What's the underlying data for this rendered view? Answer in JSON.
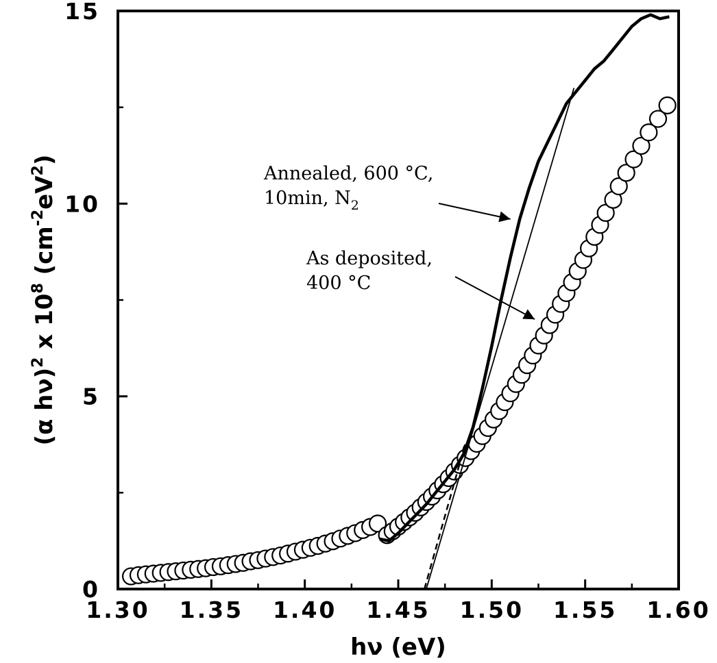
{
  "chart_data": {
    "type": "scatter",
    "title": "",
    "xlabel": "hν (eV)",
    "ylabel_parts": [
      "(α hν)",
      "2",
      " x 10",
      "8",
      " (cm",
      "-2",
      "eV",
      "2",
      ")"
    ],
    "xlim": [
      1.3,
      1.6
    ],
    "ylim": [
      0,
      15
    ],
    "xticks": [
      1.3,
      1.35,
      1.4,
      1.45,
      1.5,
      1.55,
      1.6
    ],
    "xtick_labels": [
      "1.30",
      "1.35",
      "1.40",
      "1.45",
      "1.50",
      "1.55",
      "1.60"
    ],
    "yticks": [
      0,
      5,
      10,
      15
    ],
    "ytick_labels": [
      "0",
      "5",
      "10",
      "15"
    ],
    "grid": false,
    "series": [
      {
        "marker": "open-circle",
        "x": [
          1.307,
          1.311,
          1.315,
          1.319,
          1.323,
          1.327,
          1.331,
          1.335,
          1.339,
          1.343,
          1.347,
          1.351,
          1.355,
          1.359,
          1.363,
          1.367,
          1.371,
          1.375,
          1.379,
          1.383,
          1.387,
          1.391,
          1.395,
          1.399,
          1.403,
          1.407,
          1.411,
          1.415,
          1.419,
          1.423,
          1.427,
          1.431,
          1.435,
          1.439,
          1.444,
          1.447,
          1.45,
          1.453,
          1.456,
          1.459,
          1.462,
          1.465,
          1.468,
          1.471,
          1.474,
          1.477,
          1.48,
          1.483,
          1.486,
          1.489,
          1.492,
          1.495,
          1.498,
          1.501,
          1.504,
          1.507,
          1.51,
          1.513,
          1.516,
          1.519,
          1.522,
          1.525,
          1.528,
          1.531,
          1.534,
          1.537,
          1.54,
          1.543,
          1.546,
          1.549,
          1.552,
          1.555,
          1.558,
          1.561,
          1.565,
          1.568,
          1.572,
          1.576,
          1.58,
          1.584,
          1.589,
          1.594
        ],
        "y": [
          0.33,
          0.36,
          0.38,
          0.4,
          0.42,
          0.44,
          0.46,
          0.48,
          0.5,
          0.52,
          0.54,
          0.57,
          0.59,
          0.62,
          0.65,
          0.68,
          0.72,
          0.75,
          0.79,
          0.83,
          0.87,
          0.92,
          0.97,
          1.02,
          1.07,
          1.12,
          1.18,
          1.24,
          1.31,
          1.38,
          1.45,
          1.53,
          1.61,
          1.7,
          1.4,
          1.5,
          1.62,
          1.74,
          1.86,
          1.98,
          2.12,
          2.26,
          2.4,
          2.56,
          2.72,
          2.88,
          3.05,
          3.22,
          3.4,
          3.58,
          3.77,
          3.97,
          4.18,
          4.4,
          4.62,
          4.85,
          5.08,
          5.32,
          5.56,
          5.81,
          6.06,
          6.32,
          6.58,
          6.85,
          7.12,
          7.4,
          7.68,
          7.96,
          8.25,
          8.54,
          8.84,
          9.14,
          9.45,
          9.76,
          10.1,
          10.45,
          10.8,
          11.15,
          11.5,
          11.85,
          12.2,
          12.55
        ]
      },
      {
        "marker": "solid-line",
        "x": [
          1.44,
          1.445,
          1.45,
          1.455,
          1.46,
          1.465,
          1.47,
          1.475,
          1.48,
          1.485,
          1.49,
          1.495,
          1.5,
          1.505,
          1.51,
          1.515,
          1.52,
          1.525,
          1.53,
          1.535,
          1.54,
          1.545,
          1.55,
          1.555,
          1.56,
          1.565,
          1.57,
          1.575,
          1.58,
          1.585,
          1.59,
          1.595
        ],
        "y": [
          1.3,
          1.25,
          1.45,
          1.7,
          1.95,
          2.2,
          2.5,
          2.8,
          3.1,
          3.5,
          4.2,
          5.2,
          6.3,
          7.5,
          8.6,
          9.6,
          10.4,
          11.1,
          11.6,
          12.1,
          12.6,
          12.9,
          13.2,
          13.5,
          13.7,
          14.0,
          14.3,
          14.6,
          14.8,
          14.9,
          14.8,
          14.85
        ]
      },
      {
        "marker": "thin-line",
        "x": [
          1.465,
          1.544
        ],
        "y": [
          0,
          13.0
        ]
      },
      {
        "marker": "dashed-line",
        "x": [
          1.464,
          1.486
        ],
        "y": [
          0,
          3.8
        ]
      }
    ],
    "annotations": [
      {
        "lines": [
          [
            "Annealed, 600 °C,"
          ],
          [
            "10min, N",
            "2"
          ]
        ],
        "arrow_to": [
          1.51,
          9.6
        ]
      },
      {
        "lines": [
          [
            "As deposited,"
          ],
          [
            "400 °C"
          ]
        ],
        "arrow_to": [
          1.523,
          7.0
        ]
      }
    ]
  }
}
